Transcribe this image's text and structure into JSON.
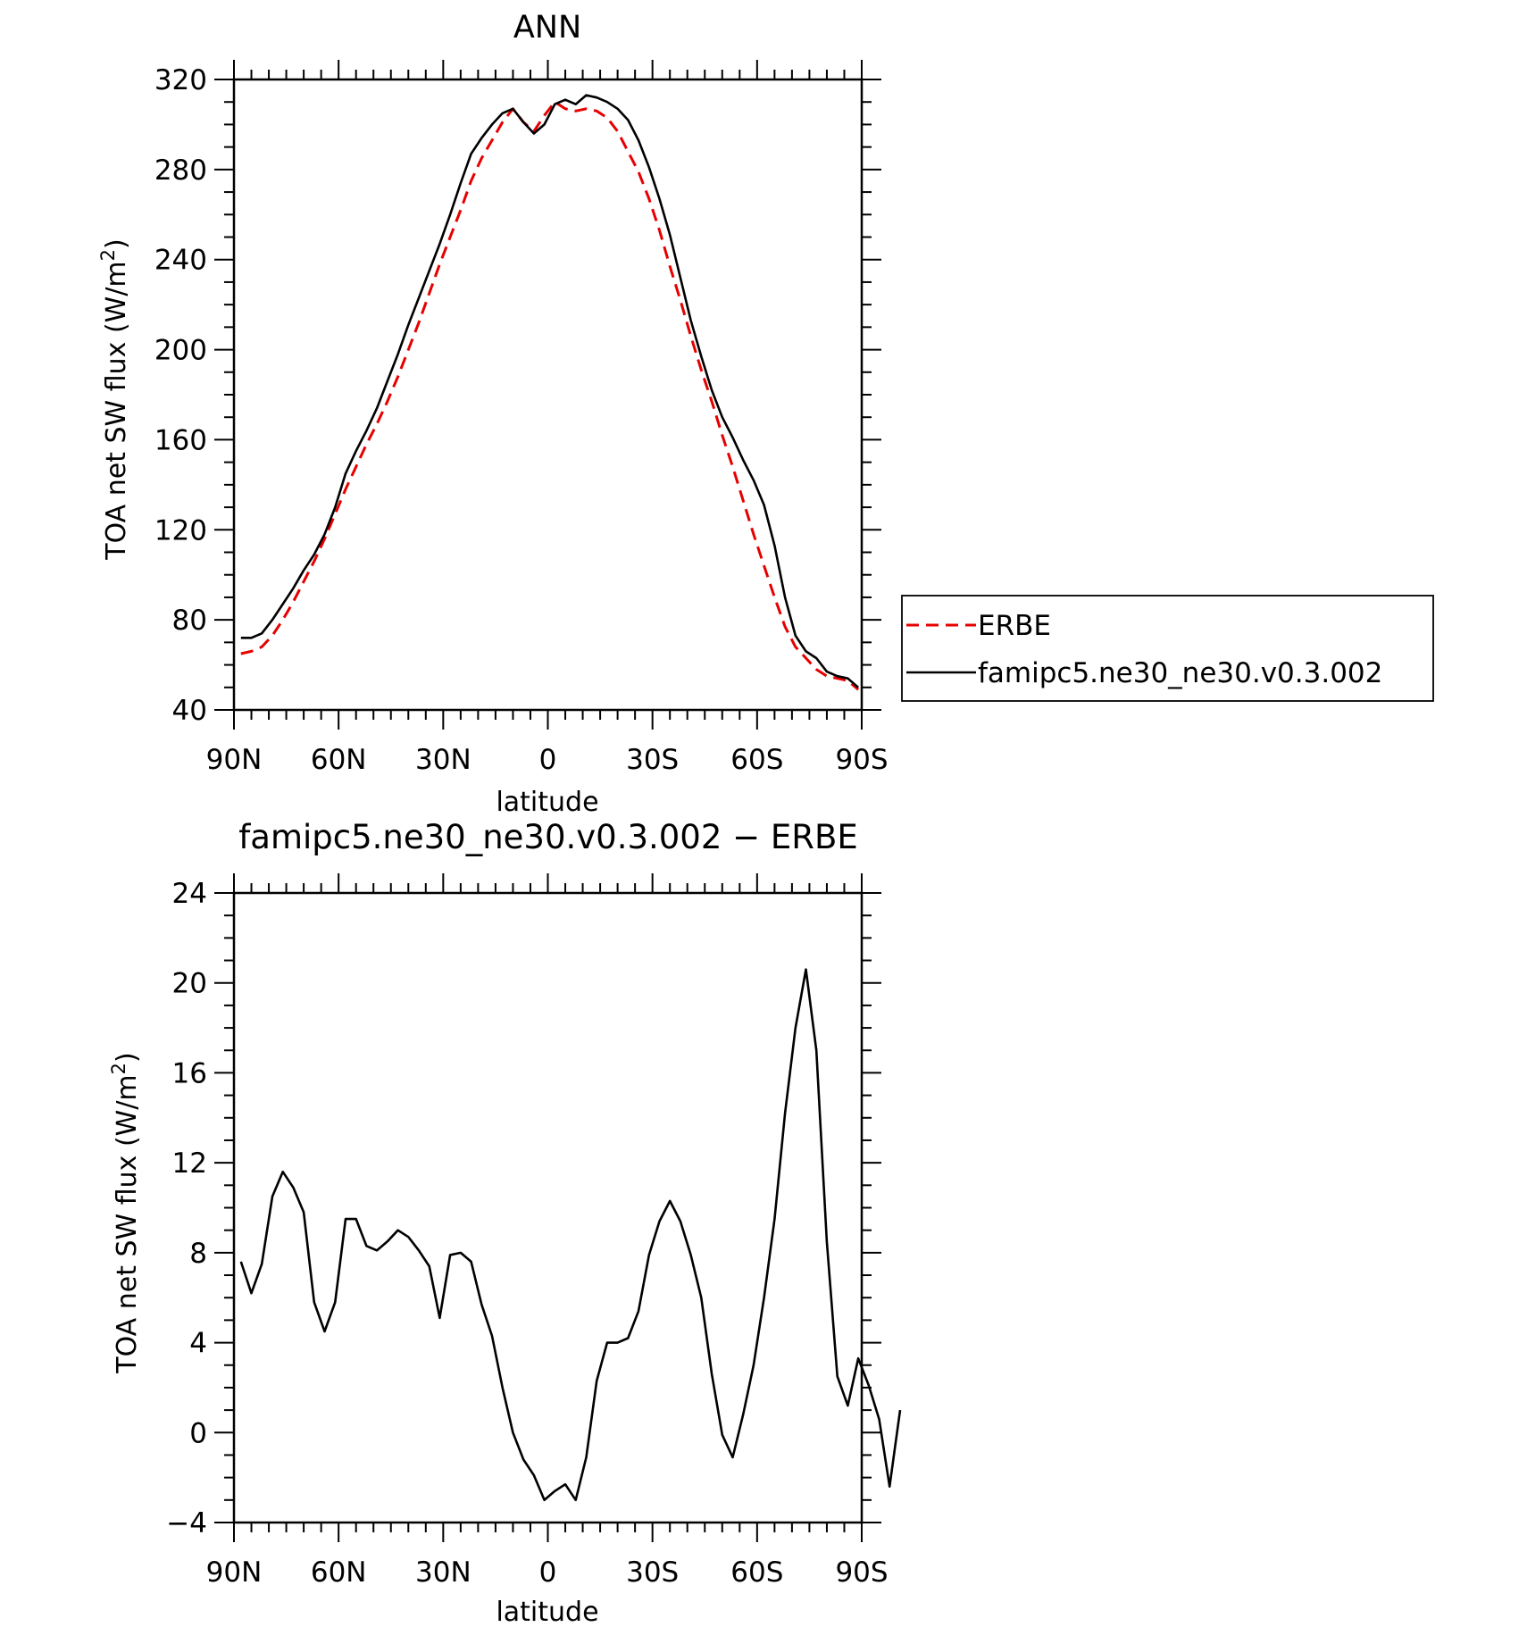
{
  "chart_data": [
    {
      "type": "line",
      "title": "ANN",
      "xlabel": "latitude",
      "ylabel_main": "TOA net SW flux (W/m",
      "ylabel_sup": "2",
      "ylabel_close": ")",
      "xlim": [
        90,
        -90
      ],
      "ylim": [
        40,
        320
      ],
      "yticks": [
        40,
        80,
        120,
        160,
        200,
        240,
        280,
        320
      ],
      "xticks": [
        {
          "value": 90,
          "label": "90N"
        },
        {
          "value": 60,
          "label": "60N"
        },
        {
          "value": 30,
          "label": "30N"
        },
        {
          "value": 0,
          "label": "0"
        },
        {
          "value": -30,
          "label": "30S"
        },
        {
          "value": -60,
          "label": "60S"
        },
        {
          "value": -90,
          "label": "90S"
        }
      ],
      "legend_position": "right",
      "series": [
        {
          "name": "ERBE",
          "color": "#e60000",
          "style": "dashed",
          "points": [
            [
              88,
              65
            ],
            [
              85,
              66
            ],
            [
              82,
              68
            ],
            [
              79,
              73
            ],
            [
              76,
              80
            ],
            [
              73,
              88
            ],
            [
              70,
              97
            ],
            [
              67,
              106
            ],
            [
              64,
              116
            ],
            [
              61,
              127
            ],
            [
              58,
              138
            ],
            [
              55,
              148
            ],
            [
              52,
              158
            ],
            [
              49,
              167
            ],
            [
              46,
              177
            ],
            [
              43,
              188
            ],
            [
              40,
              200
            ],
            [
              37,
              212
            ],
            [
              34,
              225
            ],
            [
              31,
              238
            ],
            [
              28,
              250
            ],
            [
              25,
              262
            ],
            [
              22,
              275
            ],
            [
              19,
              285
            ],
            [
              16,
              293
            ],
            [
              13,
              301
            ],
            [
              10,
              307
            ],
            [
              7,
              301
            ],
            [
              4,
              297
            ],
            [
              1,
              304
            ],
            [
              -2,
              310
            ],
            [
              -5,
              307
            ],
            [
              -8,
              306
            ],
            [
              -11,
              307
            ],
            [
              -14,
              306
            ],
            [
              -17,
              303
            ],
            [
              -20,
              297
            ],
            [
              -23,
              288
            ],
            [
              -26,
              279
            ],
            [
              -29,
              267
            ],
            [
              -32,
              253
            ],
            [
              -35,
              237
            ],
            [
              -38,
              222
            ],
            [
              -41,
              206
            ],
            [
              -44,
              191
            ],
            [
              -47,
              177
            ],
            [
              -50,
              162
            ],
            [
              -53,
              148
            ],
            [
              -56,
              133
            ],
            [
              -59,
              118
            ],
            [
              -62,
              104
            ],
            [
              -65,
              90
            ],
            [
              -68,
              77
            ],
            [
              -71,
              68
            ],
            [
              -74,
              63
            ],
            [
              -77,
              58
            ],
            [
              -80,
              55
            ],
            [
              -83,
              54
            ],
            [
              -86,
              53
            ],
            [
              -89,
              49
            ]
          ]
        },
        {
          "name": "famipc5.ne30_ne30.v0.3.002",
          "color": "#000000",
          "style": "solid",
          "points": [
            [
              88,
              72
            ],
            [
              85,
              72
            ],
            [
              82,
              74
            ],
            [
              79,
              80
            ],
            [
              76,
              87
            ],
            [
              73,
              94
            ],
            [
              70,
              102
            ],
            [
              67,
              109
            ],
            [
              64,
              118
            ],
            [
              61,
              130
            ],
            [
              58,
              145
            ],
            [
              55,
              155
            ],
            [
              52,
              164
            ],
            [
              49,
              174
            ],
            [
              46,
              186
            ],
            [
              43,
              198
            ],
            [
              40,
              211
            ],
            [
              37,
              223
            ],
            [
              34,
              235
            ],
            [
              31,
              247
            ],
            [
              28,
              260
            ],
            [
              25,
              274
            ],
            [
              22,
              287
            ],
            [
              19,
              294
            ],
            [
              16,
              300
            ],
            [
              13,
              305
            ],
            [
              10,
              307
            ],
            [
              7,
              301
            ],
            [
              4,
              296
            ],
            [
              1,
              300
            ],
            [
              -2,
              309
            ],
            [
              -5,
              311
            ],
            [
              -8,
              309
            ],
            [
              -11,
              313
            ],
            [
              -14,
              312
            ],
            [
              -17,
              310
            ],
            [
              -20,
              307
            ],
            [
              -23,
              302
            ],
            [
              -26,
              293
            ],
            [
              -29,
              281
            ],
            [
              -32,
              267
            ],
            [
              -35,
              251
            ],
            [
              -38,
              232
            ],
            [
              -41,
              213
            ],
            [
              -44,
              197
            ],
            [
              -47,
              182
            ],
            [
              -50,
              170
            ],
            [
              -53,
              161
            ],
            [
              -56,
              151
            ],
            [
              -59,
              142
            ],
            [
              -62,
              131
            ],
            [
              -65,
              113
            ],
            [
              -68,
              90
            ],
            [
              -71,
              73
            ],
            [
              -74,
              66
            ],
            [
              -77,
              63
            ],
            [
              -80,
              57
            ],
            [
              -83,
              55
            ],
            [
              -86,
              54
            ],
            [
              -89,
              50
            ]
          ]
        }
      ]
    },
    {
      "type": "line",
      "title": "famipc5.ne30_ne30.v0.3.002 − ERBE",
      "xlabel": "latitude",
      "ylabel_main": "TOA net SW flux (W/m",
      "ylabel_sup": "2",
      "ylabel_close": ")",
      "xlim": [
        90,
        -90
      ],
      "ylim": [
        -4,
        24
      ],
      "yticks": [
        -4,
        0,
        4,
        8,
        12,
        16,
        20,
        24
      ],
      "ytick_labels": [
        "−4",
        "0",
        "4",
        "8",
        "12",
        "16",
        "20",
        "24"
      ],
      "xticks": [
        {
          "value": 90,
          "label": "90N"
        },
        {
          "value": 60,
          "label": "60N"
        },
        {
          "value": 30,
          "label": "30N"
        },
        {
          "value": 0,
          "label": "0"
        },
        {
          "value": -30,
          "label": "30S"
        },
        {
          "value": -60,
          "label": "60S"
        },
        {
          "value": -90,
          "label": "90S"
        }
      ],
      "series": [
        {
          "color": "#000000",
          "style": "solid",
          "points": [
            [
              88,
              7.6
            ],
            [
              85,
              6.2
            ],
            [
              82,
              7.5
            ],
            [
              79,
              10.5
            ],
            [
              76,
              11.6
            ],
            [
              73,
              10.9
            ],
            [
              70,
              9.8
            ],
            [
              67,
              5.8
            ],
            [
              64,
              4.5
            ],
            [
              61,
              5.8
            ],
            [
              58,
              9.5
            ],
            [
              55,
              9.5
            ],
            [
              52,
              8.3
            ],
            [
              49,
              8.1
            ],
            [
              46,
              8.5
            ],
            [
              43,
              9.0
            ],
            [
              40,
              8.7
            ],
            [
              37,
              8.1
            ],
            [
              34,
              7.4
            ],
            [
              31,
              5.1
            ],
            [
              28,
              7.9
            ],
            [
              25,
              8.0
            ],
            [
              22,
              7.6
            ],
            [
              19,
              5.7
            ],
            [
              16,
              4.3
            ],
            [
              13,
              2.0
            ],
            [
              10,
              0.0
            ],
            [
              7,
              -1.2
            ],
            [
              4,
              -1.9
            ],
            [
              1,
              -3.0
            ],
            [
              -2,
              -2.6
            ],
            [
              -5,
              -2.3
            ],
            [
              -8,
              -3.0
            ],
            [
              -11,
              -1.1
            ],
            [
              -14,
              2.3
            ],
            [
              -17,
              4.0
            ],
            [
              -20,
              4.0
            ],
            [
              -23,
              4.2
            ],
            [
              -26,
              5.4
            ],
            [
              -29,
              7.9
            ],
            [
              -32,
              9.4
            ],
            [
              -35,
              10.3
            ],
            [
              -38,
              9.4
            ],
            [
              -41,
              7.9
            ],
            [
              -44,
              6.0
            ],
            [
              -47,
              2.6
            ],
            [
              -50,
              -0.1
            ],
            [
              -53,
              -1.1
            ],
            [
              -56,
              0.8
            ],
            [
              -59,
              3.0
            ],
            [
              -62,
              6.0
            ],
            [
              -65,
              9.5
            ],
            [
              -68,
              14.2
            ],
            [
              -71,
              18.0
            ],
            [
              -74,
              20.6
            ],
            [
              -77,
              17.0
            ],
            [
              -80,
              8.5
            ],
            [
              -83,
              2.5
            ],
            [
              -86,
              1.2
            ],
            [
              -89,
              3.3
            ],
            [
              -92,
              2.1
            ],
            [
              -95,
              0.6
            ],
            [
              -98,
              -2.4
            ],
            [
              -101,
              1.0
            ]
          ]
        }
      ]
    }
  ]
}
